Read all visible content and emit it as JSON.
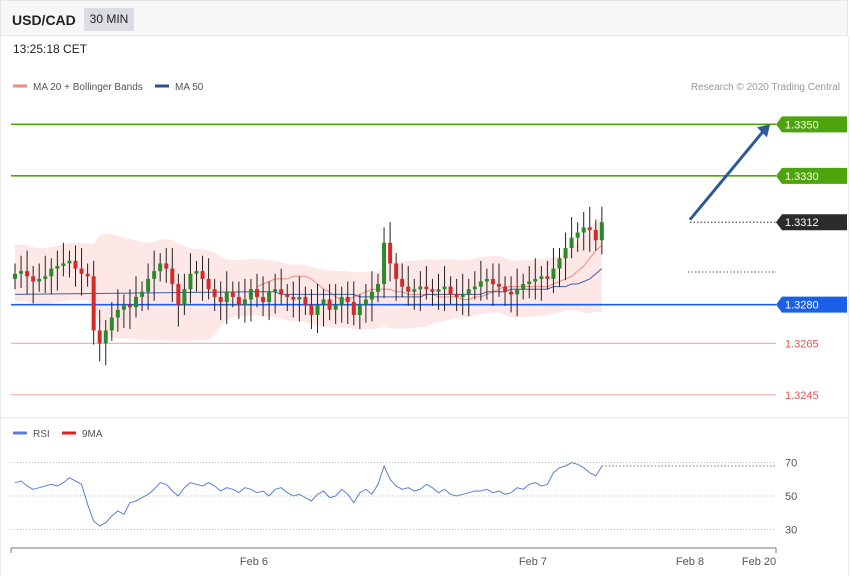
{
  "header": {
    "symbol": "USD/CAD",
    "timeframe": "30 MIN",
    "time": "13:25:18 CET"
  },
  "legend": {
    "ma20_label": "MA 20 + Bollinger Bands",
    "ma50_label": "MA 50",
    "credit": "Research © 2020 Trading Central",
    "rsi_label": "RSI",
    "rsi_ma_label": "9MA"
  },
  "colors": {
    "ma20": "#f28b82",
    "ma50": "#3f5fa8",
    "bands": "#fde3e3",
    "candle_up": "#2c8a2c",
    "candle_down": "#d42a2a",
    "resistance": "#4fa30c",
    "support": "#1a5fe6",
    "current": "#2b2b2b",
    "weak_support": "#f4a6a6",
    "arrow": "#2f5897",
    "rsi": "#5b7fd6",
    "rsi_ma": "#e02020"
  },
  "chart_data": [
    {
      "type": "candlestick",
      "ylim": [
        1.3236,
        1.3361
      ],
      "levels": [
        {
          "value": 1.335,
          "label": "1.3350",
          "kind": "resistance"
        },
        {
          "value": 1.333,
          "label": "1.3330",
          "kind": "resistance"
        },
        {
          "value": 1.3312,
          "label": "1.3312",
          "kind": "current"
        },
        {
          "value": 1.328,
          "label": "1.3280",
          "kind": "support"
        },
        {
          "value": 1.3265,
          "label": "1.3265",
          "kind": "weak_support"
        },
        {
          "value": 1.3245,
          "label": "1.3245",
          "kind": "weak_support"
        }
      ],
      "closes": [
        1.3292,
        1.3293,
        1.3291,
        1.3289,
        1.329,
        1.3291,
        1.3294,
        1.3295,
        1.3296,
        1.3297,
        1.3294,
        1.3292,
        1.3291,
        1.327,
        1.3265,
        1.327,
        1.3275,
        1.3278,
        1.328,
        1.3279,
        1.3283,
        1.3285,
        1.329,
        1.3293,
        1.3296,
        1.3294,
        1.3288,
        1.328,
        1.3286,
        1.3292,
        1.3293,
        1.329,
        1.3286,
        1.3283,
        1.3281,
        1.3285,
        1.3283,
        1.328,
        1.3282,
        1.3286,
        1.3283,
        1.3281,
        1.3285,
        1.3286,
        1.3284,
        1.3283,
        1.3282,
        1.3283,
        1.328,
        1.3276,
        1.328,
        1.3282,
        1.3278,
        1.328,
        1.3283,
        1.3281,
        1.3276,
        1.328,
        1.3282,
        1.3285,
        1.3288,
        1.3304,
        1.3296,
        1.329,
        1.3287,
        1.3285,
        1.3286,
        1.3287,
        1.3286,
        1.3285,
        1.3286,
        1.3287,
        1.3284,
        1.3283,
        1.3284,
        1.3286,
        1.3287,
        1.3289,
        1.329,
        1.3288,
        1.3287,
        1.3285,
        1.3284,
        1.3286,
        1.3288,
        1.3289,
        1.329,
        1.3291,
        1.329,
        1.3294,
        1.3298,
        1.3302,
        1.3306,
        1.3308,
        1.331,
        1.3309,
        1.3305,
        1.3312
      ],
      "ma20": [
        1.3287,
        1.3288,
        1.3289,
        1.329,
        1.329,
        1.329,
        1.3291,
        1.3291,
        1.3291,
        1.329,
        1.3288,
        1.3286,
        1.3285,
        1.3283,
        1.3282,
        1.3282,
        1.3283,
        1.3284,
        1.3285,
        1.3286,
        1.3286,
        1.3286,
        1.3286,
        1.3285,
        1.3285,
        1.3284,
        1.3284,
        1.3284,
        1.3284,
        1.3284,
        1.3283,
        1.3283,
        1.3283,
        1.3283,
        1.3282,
        1.3282,
        1.3283,
        1.3283,
        1.3284,
        1.3285,
        1.3286,
        1.3287,
        1.3287,
        1.3287,
        1.3287,
        1.3287,
        1.3287,
        1.3287,
        1.3287,
        1.3288,
        1.3289,
        1.329,
        1.3291,
        1.3293,
        1.3295,
        1.3298,
        1.3301,
        1.3303
      ],
      "ma50": [
        1.3285,
        1.3285,
        1.3285,
        1.3285,
        1.3284,
        1.3284,
        1.3284,
        1.3284,
        1.3284,
        1.3284,
        1.3284,
        1.3284,
        1.3284,
        1.3284,
        1.3284,
        1.3284,
        1.3284,
        1.3283,
        1.3283,
        1.3283,
        1.3283,
        1.3283,
        1.3283,
        1.3283,
        1.3283,
        1.3283,
        1.3283,
        1.3283,
        1.3284,
        1.3284,
        1.3284,
        1.3284,
        1.3284,
        1.3284,
        1.3284,
        1.3284,
        1.3284,
        1.3284,
        1.3285,
        1.3285,
        1.3285,
        1.3285,
        1.3286,
        1.3286,
        1.3286,
        1.3286,
        1.3286,
        1.3286,
        1.3286,
        1.3287,
        1.3287,
        1.3287,
        1.3288,
        1.3288,
        1.3289,
        1.329,
        1.3292,
        1.3294
      ],
      "target_arrow": {
        "from": 1.3313,
        "to": 1.335
      }
    },
    {
      "type": "line",
      "ylim": [
        20,
        80
      ],
      "yticks": [
        70,
        50,
        30
      ],
      "series": [
        {
          "name": "RSI",
          "values": [
            58,
            59,
            56,
            54,
            55,
            56,
            57,
            56,
            58,
            61,
            59,
            57,
            45,
            35,
            32,
            34,
            38,
            41,
            39,
            46,
            47,
            49,
            51,
            54,
            58,
            57,
            53,
            50,
            55,
            58,
            57,
            56,
            58,
            56,
            53,
            55,
            54,
            52,
            55,
            54,
            52,
            53,
            50,
            54,
            55,
            52,
            50,
            51,
            49,
            47,
            51,
            53,
            49,
            50,
            54,
            51,
            46,
            52,
            54,
            51,
            57,
            68,
            60,
            56,
            54,
            55,
            53,
            54,
            57,
            55,
            52,
            54,
            51,
            50,
            51,
            52,
            53,
            53,
            54,
            52,
            53,
            51,
            52,
            55,
            54,
            57,
            58,
            56,
            57,
            64,
            67,
            68,
            70,
            69,
            67,
            64,
            62,
            68
          ]
        }
      ],
      "xticks": [
        "Feb 6",
        "Feb 7",
        "Feb 8",
        "Feb 20"
      ]
    }
  ]
}
